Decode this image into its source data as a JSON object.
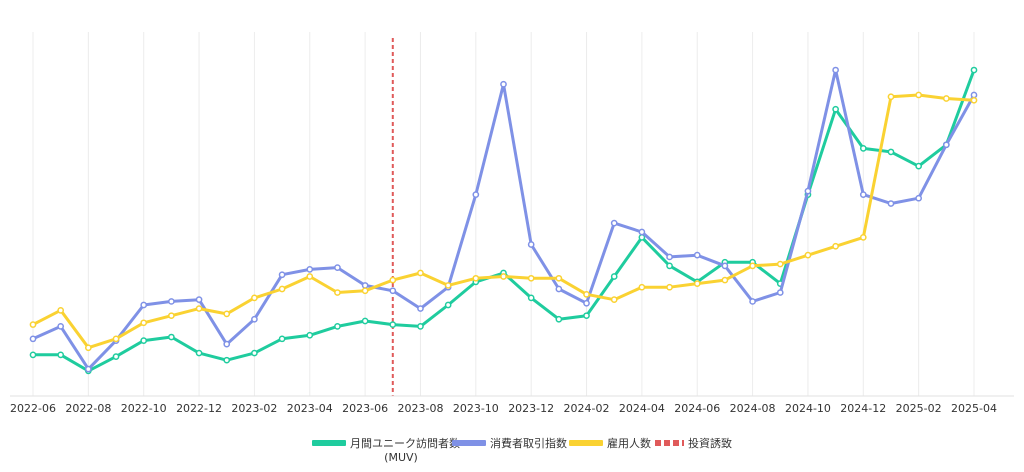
{
  "chart_data": {
    "type": "line",
    "title": "",
    "xlabel": "",
    "ylabel": "",
    "x": [
      "2022-06",
      "2022-07",
      "2022-08",
      "2022-09",
      "2022-10",
      "2022-11",
      "2022-12",
      "2023-01",
      "2023-02",
      "2023-03",
      "2023-04",
      "2023-05",
      "2023-06",
      "2023-07",
      "2023-08",
      "2023-09",
      "2023-10",
      "2023-11",
      "2023-12",
      "2024-01",
      "2024-02",
      "2024-03",
      "2024-04",
      "2024-05",
      "2024-06",
      "2024-07",
      "2024-08",
      "2024-09",
      "2024-10",
      "2024-11",
      "2024-12",
      "2025-01",
      "2025-02",
      "2025-03",
      "2025-04"
    ],
    "x_tick_labels": [
      "2022-06",
      "2022-08",
      "2022-10",
      "2022-12",
      "2023-02",
      "2023-04",
      "2023-06",
      "2023-08",
      "2023-10",
      "2023-12",
      "2024-02",
      "2024-04",
      "2024-06",
      "2024-08",
      "2024-10",
      "2024-12",
      "2025-02",
      "2025-04"
    ],
    "ylim": [
      0,
      100
    ],
    "y_axis_labels": false,
    "grid": "vertical",
    "legend_position": "bottom",
    "series": [
      {
        "name": "月間ユニーク訪問者数",
        "name_line2": "(MUV)",
        "color": "#1fcc9e",
        "values": [
          11,
          11,
          6.5,
          10.5,
          15,
          16,
          11.5,
          9.5,
          11.5,
          15.5,
          16.5,
          19,
          20.5,
          19.5,
          19,
          25,
          31.5,
          34,
          27,
          21,
          22,
          33,
          44,
          36,
          31.5,
          37,
          37,
          31,
          56,
          80,
          69,
          68,
          64,
          70,
          91
        ]
      },
      {
        "name": "消費者取引指数",
        "color": "#7f91e6",
        "values": [
          15.5,
          19,
          7,
          15,
          25,
          26,
          26.5,
          14,
          21,
          33.5,
          35,
          35.5,
          30.5,
          29,
          24,
          30,
          56,
          87,
          42,
          29.5,
          25.5,
          48,
          45.5,
          38.5,
          39,
          36,
          26,
          28.5,
          57,
          91,
          56,
          53.5,
          55,
          70,
          84
        ]
      },
      {
        "name": "雇用人数",
        "color": "#fad232",
        "values": [
          19.5,
          23.5,
          13,
          15.5,
          20,
          22,
          24,
          22.5,
          27,
          29.5,
          33,
          28.5,
          29,
          32,
          34,
          30.5,
          32.5,
          33,
          32.5,
          32.5,
          28,
          26.5,
          30,
          30,
          31,
          32,
          36,
          36.5,
          39,
          41.5,
          44,
          83.5,
          84,
          83,
          82.5
        ]
      }
    ],
    "events": [
      {
        "name": "投資誘致",
        "x": "2023-07",
        "color": "#e05a5a",
        "style": "dashed"
      }
    ]
  }
}
